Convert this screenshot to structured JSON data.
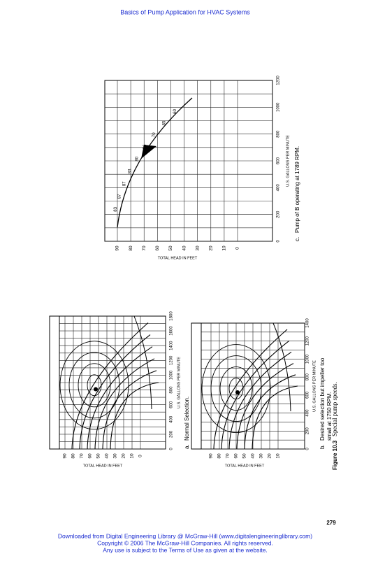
{
  "header": {
    "title": "Basics of Pump Application for HVAC Systems"
  },
  "figure": {
    "panels": [
      {
        "label": "a.",
        "caption_lines": [
          "Normal Selection."
        ],
        "y_axis": "TOTAL HEAD IN FEET",
        "x_axis": "U.S. GALLONS PER MINUTE",
        "x_ticks": [
          0,
          200,
          400,
          600,
          800,
          1000,
          1200,
          1400,
          1600,
          1800
        ],
        "y_ticks": [
          90,
          80,
          70,
          60,
          50,
          40,
          30,
          20,
          10,
          0
        ]
      },
      {
        "label": "b.",
        "caption_lines": [
          "Desired selection but impeller too",
          "small at 1750 RPM."
        ],
        "y_axis": "TOTAL HEAD IN FEET",
        "x_axis": "U.S. GALLONS PER MINUTE",
        "x_ticks": [
          0,
          200,
          400,
          600,
          800,
          1000,
          1200,
          1400
        ],
        "y_ticks": [
          90,
          80,
          70,
          60,
          50,
          40,
          30,
          20,
          10
        ]
      },
      {
        "label": "c.",
        "caption_lines": [
          "Pump of B operating at 1789 RPM."
        ],
        "y_axis": "TOTAL HEAD IN FEET",
        "x_axis": "U.S. GALLONS PER MINUTE",
        "x_ticks": [
          0,
          200,
          400,
          600,
          800,
          1000,
          1200
        ],
        "y_ticks": [
          90,
          80,
          70,
          60,
          50,
          40,
          30,
          20,
          10,
          0
        ],
        "efficiency_labels": [
          83,
          87,
          87,
          83,
          80,
          76,
          70,
          65,
          60
        ]
      }
    ],
    "caption": {
      "label": "Figure 10.3",
      "text": "Special pump speeds."
    }
  },
  "page_number": "279",
  "footer": {
    "lines": [
      "Downloaded from Digital Engineering Library @ McGraw-Hill (www.digitalengineeringlibrary.com)",
      "Copyright © 2006 The McGraw-Hill Companies. All rights reserved.",
      "Any use is subject to the Terms of Use as given at the website."
    ]
  }
}
